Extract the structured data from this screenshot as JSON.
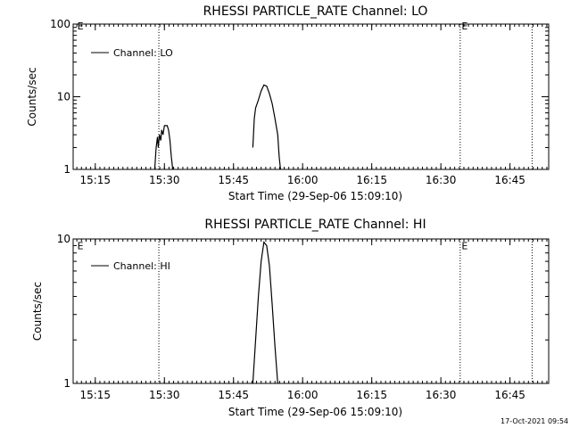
{
  "chart_data": [
    {
      "type": "line",
      "title": "RHESSI PARTICLE_RATE Channel: LO",
      "xlabel": "Start Time (29-Sep-06 15:09:10)",
      "ylabel": "Counts/sec",
      "yscale": "log",
      "ylim": [
        1,
        100
      ],
      "xlim_minutes": [
        15.17,
        16.89
      ],
      "x_ticks": [
        {
          "label": "15:15",
          "t": 15.25
        },
        {
          "label": "15:30",
          "t": 15.5
        },
        {
          "label": "15:45",
          "t": 15.75
        },
        {
          "label": "16:00",
          "t": 16.0
        },
        {
          "label": "16:15",
          "t": 16.25
        },
        {
          "label": "16:30",
          "t": 16.5
        },
        {
          "label": "16:45",
          "t": 16.75
        }
      ],
      "y_ticks": [
        {
          "label": "1",
          "v": 1
        },
        {
          "label": "10",
          "v": 10
        },
        {
          "label": "100",
          "v": 100
        }
      ],
      "vlines": [
        15.48,
        16.57,
        16.83
      ],
      "markers": [
        {
          "label": "E",
          "t": 15.185,
          "v": 85
        },
        {
          "label": "E",
          "t": 16.575,
          "v": 85
        }
      ],
      "series": [
        {
          "name": "Channel: LO",
          "segments": [
            [
              [
                15.465,
                1.0
              ],
              [
                15.47,
                2.0
              ],
              [
                15.475,
                2.8
              ],
              [
                15.478,
                2.0
              ],
              [
                15.482,
                3.0
              ],
              [
                15.487,
                2.5
              ],
              [
                15.49,
                3.5
              ],
              [
                15.495,
                3.0
              ],
              [
                15.5,
                4.0
              ],
              [
                15.51,
                4.0
              ],
              [
                15.515,
                3.5
              ],
              [
                15.52,
                2.5
              ],
              [
                15.525,
                1.5
              ],
              [
                15.53,
                1.0
              ]
            ],
            [
              [
                15.82,
                2.0
              ],
              [
                15.825,
                5.0
              ],
              [
                15.83,
                7.0
              ],
              [
                15.84,
                9.0
              ],
              [
                15.85,
                12.0
              ],
              [
                15.86,
                14.5
              ],
              [
                15.87,
                14.0
              ],
              [
                15.88,
                11.0
              ],
              [
                15.89,
                8.0
              ],
              [
                15.9,
                5.0
              ],
              [
                15.91,
                3.0
              ],
              [
                15.915,
                1.5
              ],
              [
                15.92,
                1.0
              ]
            ]
          ]
        }
      ],
      "legend": "top-left"
    },
    {
      "type": "line",
      "title": "RHESSI PARTICLE_RATE Channel: HI",
      "xlabel": "Start Time (29-Sep-06 15:09:10)",
      "ylabel": "Counts/sec",
      "yscale": "log",
      "ylim": [
        1,
        10
      ],
      "xlim_minutes": [
        15.17,
        16.89
      ],
      "x_ticks": [
        {
          "label": "15:15",
          "t": 15.25
        },
        {
          "label": "15:30",
          "t": 15.5
        },
        {
          "label": "15:45",
          "t": 15.75
        },
        {
          "label": "16:00",
          "t": 16.0
        },
        {
          "label": "16:15",
          "t": 16.25
        },
        {
          "label": "16:30",
          "t": 16.5
        },
        {
          "label": "16:45",
          "t": 16.75
        }
      ],
      "y_ticks": [
        {
          "label": "1",
          "v": 1
        },
        {
          "label": "10",
          "v": 10
        }
      ],
      "vlines": [
        15.48,
        16.57,
        16.83
      ],
      "markers": [
        {
          "label": "E",
          "t": 15.185,
          "v": 8.5
        },
        {
          "label": "E",
          "t": 16.575,
          "v": 8.5
        }
      ],
      "series": [
        {
          "name": "Channel: HI",
          "segments": [
            [
              [
                15.82,
                1.0
              ],
              [
                15.83,
                2.0
              ],
              [
                15.84,
                4.0
              ],
              [
                15.85,
                7.0
              ],
              [
                15.86,
                9.5
              ],
              [
                15.87,
                9.0
              ],
              [
                15.88,
                6.5
              ],
              [
                15.89,
                3.5
              ],
              [
                15.9,
                1.8
              ],
              [
                15.91,
                1.0
              ]
            ]
          ]
        }
      ],
      "legend": "top-left"
    }
  ],
  "footer": {
    "date_stamp": "17-Oct-2021 09:54"
  }
}
